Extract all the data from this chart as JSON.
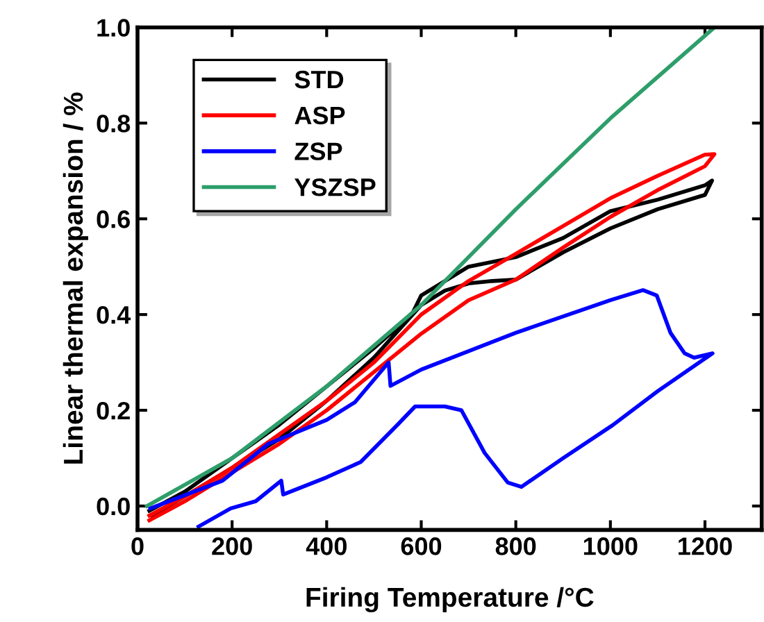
{
  "chart_data": {
    "type": "line",
    "xlabel": "Firing Temperature /°C",
    "ylabel": "Linear thermal expansion / %",
    "xlim": [
      0,
      1320
    ],
    "xticks": [
      0,
      200,
      400,
      600,
      800,
      1000,
      1200
    ],
    "ylim": [
      -0.05,
      1.0
    ],
    "yticks": [
      {
        "value": 0,
        "label": "0.0"
      },
      0.2,
      0.4,
      0.6,
      0.8,
      {
        "value": 1,
        "label": "1.0"
      }
    ],
    "grid": false,
    "legend": "top left",
    "marker": "none",
    "line_style": "solid",
    "series": [
      {
        "name": "STD",
        "color": "#000000",
        "x": [
          25,
          100,
          200,
          300,
          400,
          500,
          580,
          600,
          650,
          700,
          800,
          900,
          1000,
          1100,
          1200,
          1215,
          1200,
          1100,
          1000,
          900,
          800,
          750,
          700,
          650,
          600,
          500,
          400,
          300,
          200,
          100,
          30
        ],
        "values": [
          -0.01,
          0.03,
          0.1,
          0.17,
          0.25,
          0.33,
          0.4,
          0.44,
          0.47,
          0.5,
          0.52,
          0.56,
          0.616,
          0.64,
          0.67,
          0.68,
          0.65,
          0.62,
          0.58,
          0.53,
          0.473,
          0.47,
          0.465,
          0.45,
          0.42,
          0.31,
          0.22,
          0.14,
          0.08,
          0.02,
          -0.02
        ]
      },
      {
        "name": "ASP",
        "color": "#ff0000",
        "x": [
          25,
          100,
          200,
          300,
          400,
          500,
          600,
          700,
          800,
          900,
          1000,
          1100,
          1200,
          1220,
          1200,
          1100,
          1000,
          900,
          800,
          700,
          600,
          500,
          400,
          300,
          200,
          100,
          25
        ],
        "values": [
          -0.02,
          0.02,
          0.08,
          0.15,
          0.22,
          0.3,
          0.4,
          0.47,
          0.527,
          0.585,
          0.643,
          0.69,
          0.734,
          0.735,
          0.71,
          0.66,
          0.604,
          0.54,
          0.473,
          0.43,
          0.36,
          0.28,
          0.2,
          0.13,
          0.07,
          0.01,
          -0.03
        ]
      },
      {
        "name": "ZSP",
        "color": "#0000ff",
        "x": [
          129,
          197,
          250,
          304,
          308,
          400,
          472,
          550,
          587,
          650,
          685,
          734,
          783,
          812,
          900,
          1005,
          1100,
          1216,
          1177,
          1157,
          1127,
          1098,
          1069,
          1000,
          800,
          600,
          535,
          531,
          460,
          400,
          277,
          180,
          27
        ],
        "values": [
          -0.043,
          -0.005,
          0.01,
          0.053,
          0.024,
          0.06,
          0.092,
          0.17,
          0.208,
          0.208,
          0.2,
          0.111,
          0.049,
          0.04,
          0.1,
          0.169,
          0.24,
          0.319,
          0.31,
          0.319,
          0.362,
          0.44,
          0.451,
          0.43,
          0.362,
          0.285,
          0.251,
          0.3,
          0.217,
          0.18,
          0.13,
          0.053,
          -0.005
        ]
      },
      {
        "name": "YSZSP",
        "color": "#2e9e6a",
        "x": [
          20,
          200,
          400,
          600,
          800,
          1000,
          1220
        ],
        "values": [
          0.0,
          0.1,
          0.25,
          0.42,
          0.62,
          0.81,
          1.0
        ]
      }
    ]
  }
}
